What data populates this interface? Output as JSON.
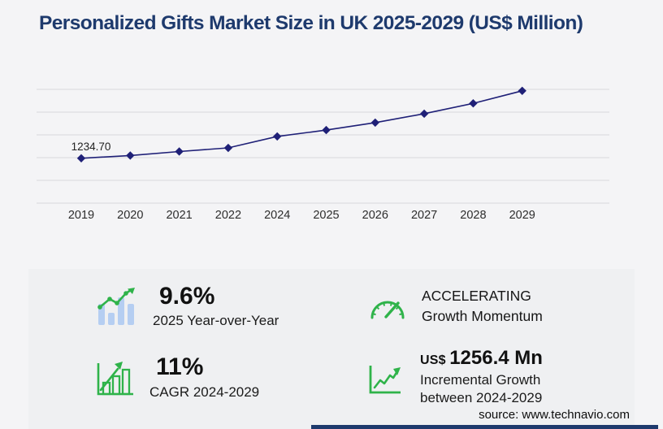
{
  "page": {
    "background": "#f4f4f6",
    "panel_background": "#eff0f2",
    "accent_navy": "#1e3a6d",
    "accent_green": "#2fb34a",
    "bar_blue": "#b5cef2"
  },
  "header": {
    "title": "Personalized Gifts Market Size in UK 2025-2029 (US$ Million)"
  },
  "chart_data": {
    "type": "line",
    "title": "Personalized Gifts Market Size in UK 2025-2029 (US$ Million)",
    "categories": [
      "2019",
      "2020",
      "2021",
      "2022",
      "2024",
      "2025",
      "2026",
      "2027",
      "2028",
      "2029"
    ],
    "values": [
      1234.7,
      1310,
      1420,
      1520,
      1835,
      2010,
      2215,
      2460,
      2745,
      3090
    ],
    "value_labels": {
      "2019": "1234.70"
    },
    "xlabel": "",
    "ylabel": "",
    "ylim": [
      0,
      3130
    ],
    "gridline_count": 6,
    "grid": "horizontal",
    "legend": "none",
    "series_color": "#1f2077",
    "marker": "diamond"
  },
  "stats": [
    {
      "icon": "bar-trend-icon",
      "value": "9.6%",
      "label": "2025 Year-over-Year"
    },
    {
      "icon": "gauge-icon",
      "line1": "ACCELERATING",
      "line2": "Growth Momentum"
    },
    {
      "icon": "bar-growth-icon",
      "value": "11%",
      "label": "CAGR 2024-2029"
    },
    {
      "icon": "line-growth-icon",
      "currency_prefix": "US$",
      "value": "1256.4 Mn",
      "label_line1": "Incremental Growth",
      "label_line2": "between 2024-2029"
    }
  ],
  "footer": {
    "source": "source: www.technavio.com"
  }
}
